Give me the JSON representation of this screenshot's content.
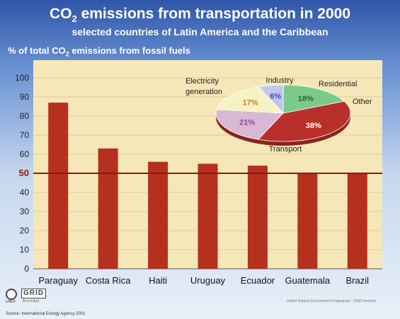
{
  "header": {
    "title_main": "CO",
    "title_sub": "2",
    "title_rest": " emissions from transportation in 2000",
    "subtitle": "selected countries of Latin America and the Caribbean",
    "ylabel_main": "% of total CO",
    "ylabel_sub": "2",
    "ylabel_rest": " emissions from fossil fuels"
  },
  "footer": {
    "source": "Source: International Energy Agency 2001",
    "credit": "United Nations Environment Programme - GRID-Arendal",
    "logo_unep": "UNEP",
    "logo_grid": "GRID",
    "logo_grid_sub": "Arendal"
  },
  "colors": {
    "bar": "#b5301f",
    "reference_line": "#8b1a10",
    "plot_bg": "#f6e7b8"
  },
  "chart_data": [
    {
      "type": "bar",
      "categories": [
        "Paraguay",
        "Costa Rica",
        "Haiti",
        "Uruguay",
        "Ecuador",
        "Guatemala",
        "Brazil"
      ],
      "values": [
        87,
        63,
        56,
        55,
        54,
        50,
        50
      ],
      "ylim": [
        0,
        100
      ],
      "yticks": [
        0,
        10,
        20,
        30,
        40,
        50,
        60,
        70,
        80,
        90,
        100
      ],
      "highlight_tick": 50,
      "grid": true
    },
    {
      "type": "pie",
      "labels": [
        "Transport",
        "Electricity generation",
        "Industry",
        "Residential",
        "Other"
      ],
      "values": [
        38,
        21,
        17,
        6,
        18
      ],
      "value_labels": [
        "38%",
        "21%",
        "17%",
        "6%",
        "18%"
      ],
      "colors": [
        "#b9302a",
        "#d9b8d6",
        "#f5f2c4",
        "#c3c6ee",
        "#7cc98b"
      ]
    }
  ]
}
